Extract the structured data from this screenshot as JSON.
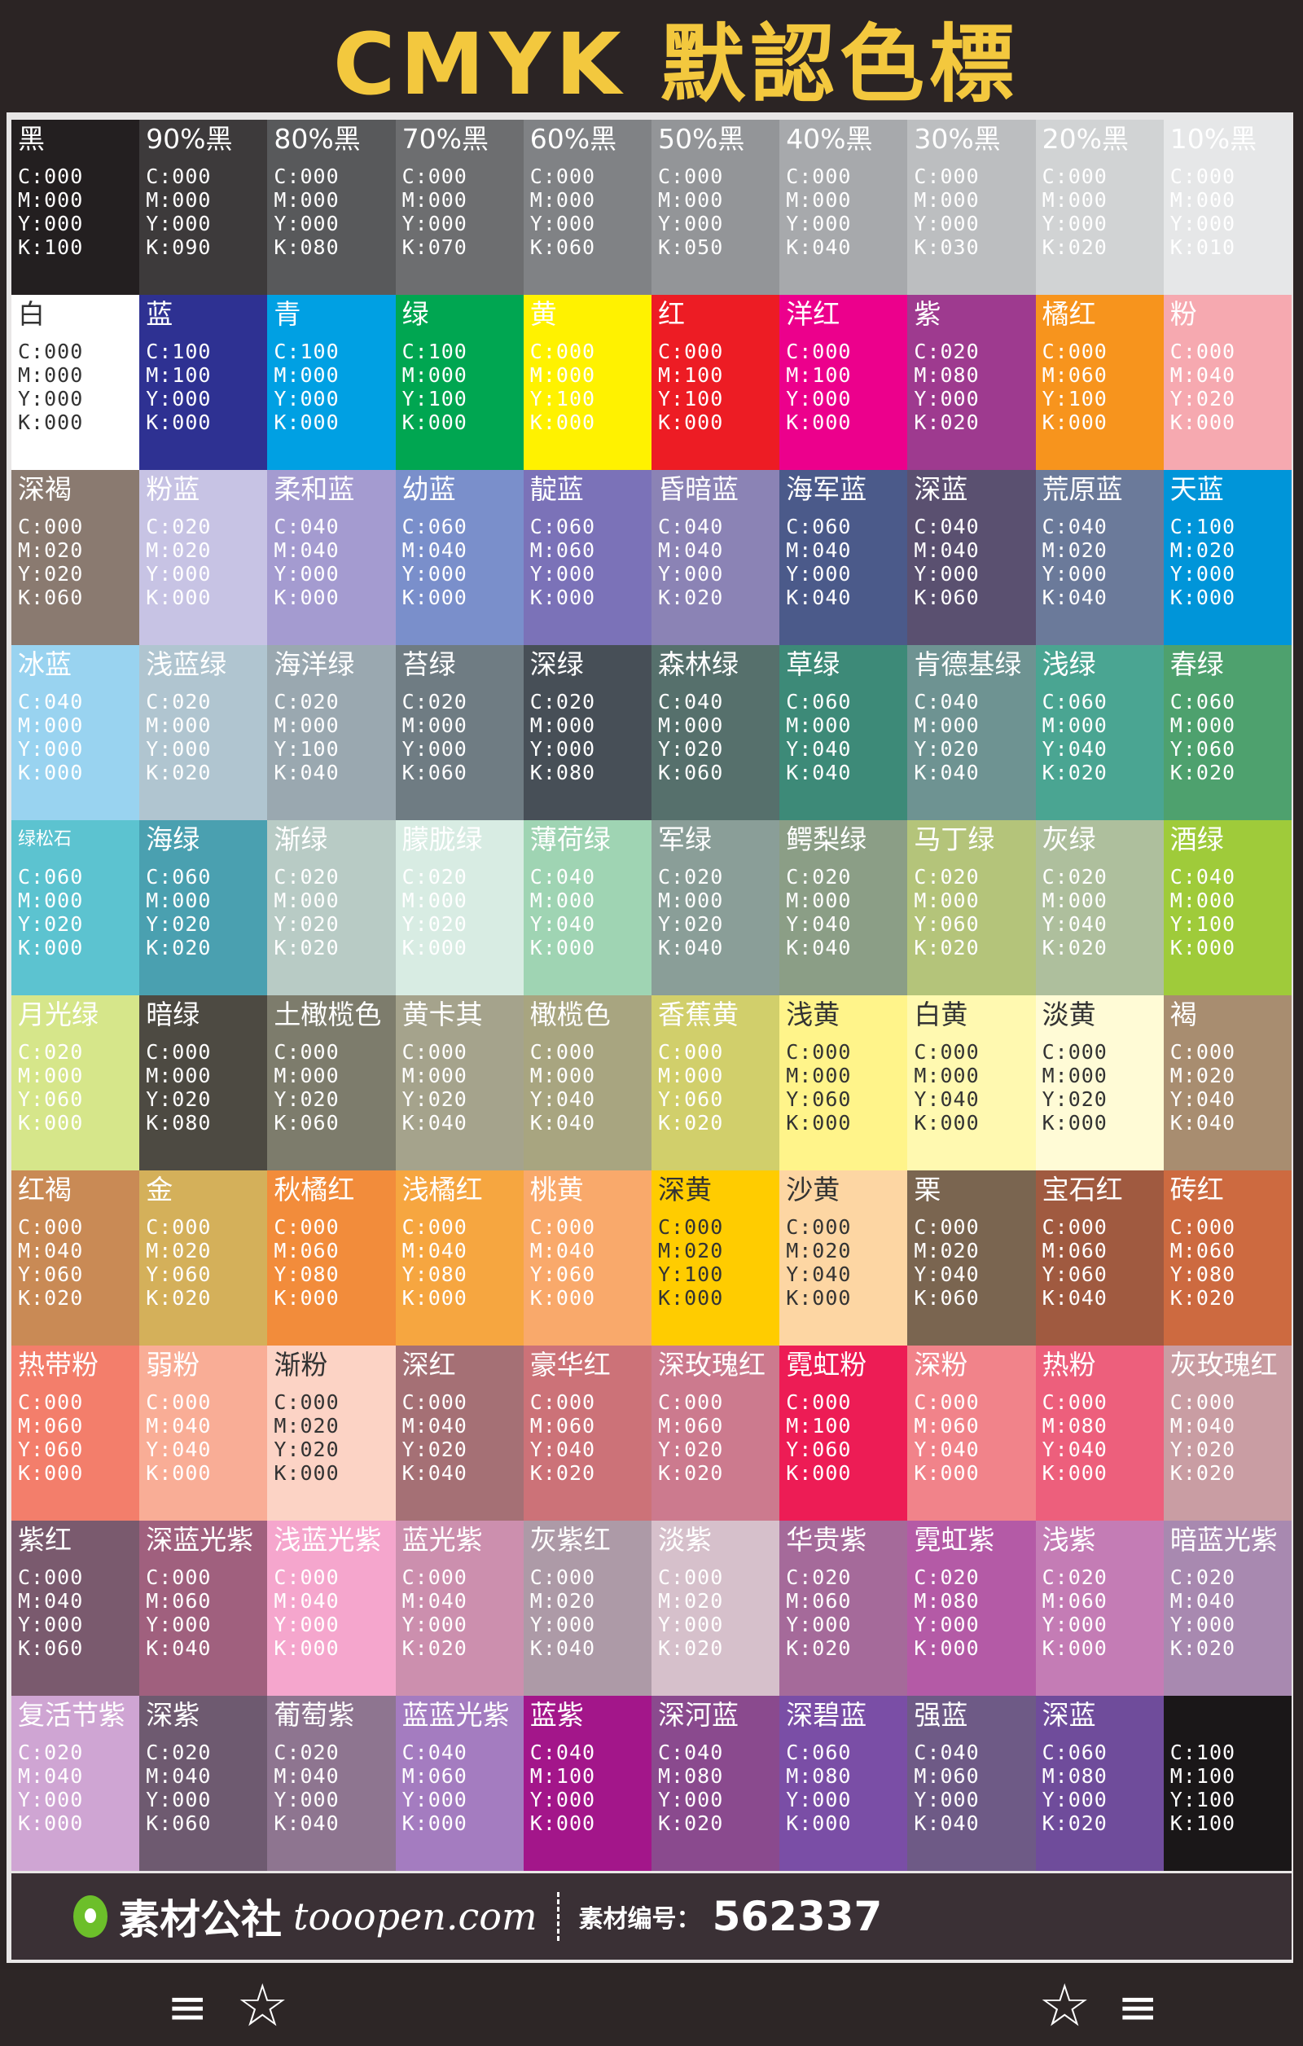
{
  "header": {
    "title": "CMYK 默認色標",
    "title_color": "#f3c83e"
  },
  "rows": [
    {
      "cells": [
        {
          "n": "黑",
          "bg": "#231f20",
          "v": [
            "C:000",
            "M:000",
            "Y:000",
            "K:100"
          ]
        },
        {
          "n": "90%黑",
          "bg": "#3d3a3b",
          "v": [
            "C:000",
            "M:000",
            "Y:000",
            "K:090"
          ]
        },
        {
          "n": "80%黑",
          "bg": "#58595b",
          "v": [
            "C:000",
            "M:000",
            "Y:000",
            "K:080"
          ]
        },
        {
          "n": "70%黑",
          "bg": "#6d6e70",
          "v": [
            "C:000",
            "M:000",
            "Y:000",
            "K:070"
          ]
        },
        {
          "n": "60%黑",
          "bg": "#808285",
          "v": [
            "C:000",
            "M:000",
            "Y:000",
            "K:060"
          ]
        },
        {
          "n": "50%黑",
          "bg": "#939598",
          "v": [
            "C:000",
            "M:000",
            "Y:000",
            "K:050"
          ]
        },
        {
          "n": "40%黑",
          "bg": "#a7a9ac",
          "v": [
            "C:000",
            "M:000",
            "Y:000",
            "K:040"
          ]
        },
        {
          "n": "30%黑",
          "bg": "#bcbec0",
          "v": [
            "C:000",
            "M:000",
            "Y:000",
            "K:030"
          ]
        },
        {
          "n": "20%黑",
          "bg": "#d1d3d4",
          "v": [
            "C:000",
            "M:000",
            "Y:000",
            "K:020"
          ]
        },
        {
          "n": "10%黑",
          "bg": "#e6e7e8",
          "v": [
            "C:000",
            "M:000",
            "Y:000",
            "K:010"
          ]
        }
      ]
    },
    {
      "cells": [
        {
          "n": "白",
          "bg": "#ffffff",
          "v": [
            "C:000",
            "M:000",
            "Y:000",
            "K:000"
          ]
        },
        {
          "n": "蓝",
          "bg": "#2e3192",
          "v": [
            "C:100",
            "M:100",
            "Y:000",
            "K:000"
          ]
        },
        {
          "n": "青",
          "bg": "#00a0e3",
          "v": [
            "C:100",
            "M:000",
            "Y:000",
            "K:000"
          ]
        },
        {
          "n": "绿",
          "bg": "#00a651",
          "v": [
            "C:100",
            "M:000",
            "Y:100",
            "K:000"
          ]
        },
        {
          "n": "黄",
          "bg": "#fff200",
          "v": [
            "C:000",
            "M:000",
            "Y:100",
            "K:000"
          ]
        },
        {
          "n": "红",
          "bg": "#ed1c24",
          "v": [
            "C:000",
            "M:100",
            "Y:100",
            "K:000"
          ]
        },
        {
          "n": "洋红",
          "bg": "#ec008c",
          "v": [
            "C:000",
            "M:100",
            "Y:000",
            "K:000"
          ]
        },
        {
          "n": "紫",
          "bg": "#9e3a8f",
          "v": [
            "C:020",
            "M:080",
            "Y:000",
            "K:020"
          ]
        },
        {
          "n": "橘红",
          "bg": "#f7941d",
          "v": [
            "C:000",
            "M:060",
            "Y:100",
            "K:000"
          ]
        },
        {
          "n": "粉",
          "bg": "#f6a9b0",
          "v": [
            "C:000",
            "M:040",
            "Y:020",
            "K:000"
          ]
        }
      ]
    },
    {
      "cells": [
        {
          "n": "深褐",
          "bg": "#8a7a70",
          "v": [
            "C:000",
            "M:020",
            "Y:020",
            "K:060"
          ]
        },
        {
          "n": "粉蓝",
          "bg": "#c7c3e4",
          "v": [
            "C:020",
            "M:020",
            "Y:000",
            "K:000"
          ]
        },
        {
          "n": "柔和蓝",
          "bg": "#a49bd0",
          "v": [
            "C:040",
            "M:040",
            "Y:000",
            "K:000"
          ]
        },
        {
          "n": "幼蓝",
          "bg": "#7a8fcb",
          "v": [
            "C:060",
            "M:040",
            "Y:000",
            "K:000"
          ]
        },
        {
          "n": "靛蓝",
          "bg": "#7b72b8",
          "v": [
            "C:060",
            "M:060",
            "Y:000",
            "K:000"
          ]
        },
        {
          "n": "昏暗蓝",
          "bg": "#8b83b5",
          "v": [
            "C:040",
            "M:040",
            "Y:000",
            "K:020"
          ]
        },
        {
          "n": "海军蓝",
          "bg": "#4b5a8a",
          "v": [
            "C:060",
            "M:040",
            "Y:000",
            "K:040"
          ]
        },
        {
          "n": "深蓝",
          "bg": "#5a5070",
          "v": [
            "C:040",
            "M:040",
            "Y:000",
            "K:060"
          ]
        },
        {
          "n": "荒原蓝",
          "bg": "#6b7a9a",
          "v": [
            "C:040",
            "M:020",
            "Y:000",
            "K:040"
          ]
        },
        {
          "n": "天蓝",
          "bg": "#0095d9",
          "v": [
            "C:100",
            "M:020",
            "Y:000",
            "K:000"
          ]
        }
      ]
    },
    {
      "cells": [
        {
          "n": "冰蓝",
          "bg": "#99d3f0",
          "v": [
            "C:040",
            "M:000",
            "Y:000",
            "K:000"
          ]
        },
        {
          "n": "浅蓝绿",
          "bg": "#b0c5d0",
          "v": [
            "C:020",
            "M:000",
            "Y:000",
            "K:020"
          ]
        },
        {
          "n": "海洋绿",
          "bg": "#9aa8b0",
          "v": [
            "C:020",
            "M:000",
            "Y:100",
            "K:040"
          ]
        },
        {
          "n": "苔绿",
          "bg": "#6f7c83",
          "v": [
            "C:020",
            "M:000",
            "Y:000",
            "K:060"
          ]
        },
        {
          "n": "深绿",
          "bg": "#474f57",
          "v": [
            "C:020",
            "M:000",
            "Y:000",
            "K:080"
          ]
        },
        {
          "n": "森林绿",
          "bg": "#56706c",
          "v": [
            "C:040",
            "M:000",
            "Y:020",
            "K:060"
          ]
        },
        {
          "n": "草绿",
          "bg": "#3d8a78",
          "v": [
            "C:060",
            "M:000",
            "Y:040",
            "K:040"
          ]
        },
        {
          "n": "肯德基绿",
          "bg": "#6e9392",
          "v": [
            "C:040",
            "M:000",
            "Y:020",
            "K:040"
          ]
        },
        {
          "n": "浅绿",
          "bg": "#4aa592",
          "v": [
            "C:060",
            "M:000",
            "Y:040",
            "K:020"
          ]
        },
        {
          "n": "春绿",
          "bg": "#4ea16e",
          "v": [
            "C:060",
            "M:000",
            "Y:060",
            "K:020"
          ]
        }
      ]
    },
    {
      "cells": [
        {
          "n": "绿松石",
          "bg": "#5cc3d0",
          "v": [
            "C:060",
            "M:000",
            "Y:020",
            "K:000"
          ]
        },
        {
          "n": "海绿",
          "bg": "#4aa0b0",
          "v": [
            "C:060",
            "M:000",
            "Y:020",
            "K:020"
          ]
        },
        {
          "n": "渐绿",
          "bg": "#b8cbc5",
          "v": [
            "C:020",
            "M:000",
            "Y:020",
            "K:020"
          ]
        },
        {
          "n": "朦胧绿",
          "bg": "#d8ece3",
          "v": [
            "C:020",
            "M:000",
            "Y:020",
            "K:000"
          ]
        },
        {
          "n": "薄荷绿",
          "bg": "#9fd4b3",
          "v": [
            "C:040",
            "M:000",
            "Y:040",
            "K:000"
          ]
        },
        {
          "n": "军绿",
          "bg": "#8a9e98",
          "v": [
            "C:020",
            "M:000",
            "Y:020",
            "K:040"
          ]
        },
        {
          "n": "鳄梨绿",
          "bg": "#8b9e86",
          "v": [
            "C:020",
            "M:000",
            "Y:040",
            "K:040"
          ]
        },
        {
          "n": "马丁绿",
          "bg": "#b4c47a",
          "v": [
            "C:020",
            "M:000",
            "Y:060",
            "K:020"
          ]
        },
        {
          "n": "灰绿",
          "bg": "#aebf9d",
          "v": [
            "C:020",
            "M:000",
            "Y:040",
            "K:020"
          ]
        },
        {
          "n": "酒绿",
          "bg": "#9fcb3a",
          "v": [
            "C:040",
            "M:000",
            "Y:100",
            "K:000"
          ]
        }
      ]
    },
    {
      "cells": [
        {
          "n": "月光绿",
          "bg": "#d6e68a",
          "v": [
            "C:020",
            "M:000",
            "Y:060",
            "K:000"
          ]
        },
        {
          "n": "暗绿",
          "bg": "#4d4a42",
          "v": [
            "C:000",
            "M:000",
            "Y:020",
            "K:080"
          ]
        },
        {
          "n": "土橄榄色",
          "bg": "#7d7c6c",
          "v": [
            "C:000",
            "M:000",
            "Y:020",
            "K:060"
          ]
        },
        {
          "n": "黄卡其",
          "bg": "#a5a38c",
          "v": [
            "C:000",
            "M:000",
            "Y:020",
            "K:040"
          ]
        },
        {
          "n": "橄榄色",
          "bg": "#a8a580",
          "v": [
            "C:000",
            "M:000",
            "Y:040",
            "K:040"
          ]
        },
        {
          "n": "香蕉黄",
          "bg": "#d1cf6b",
          "v": [
            "C:000",
            "M:000",
            "Y:060",
            "K:020"
          ]
        },
        {
          "n": "浅黄",
          "bg": "#fff48a",
          "v": [
            "C:000",
            "M:000",
            "Y:060",
            "K:000"
          ]
        },
        {
          "n": "白黄",
          "bg": "#fff9b0",
          "v": [
            "C:000",
            "M:000",
            "Y:040",
            "K:000"
          ]
        },
        {
          "n": "淡黄",
          "bg": "#fffbd6",
          "v": [
            "C:000",
            "M:000",
            "Y:020",
            "K:000"
          ]
        },
        {
          "n": "褐",
          "bg": "#a88d70",
          "v": [
            "C:000",
            "M:020",
            "Y:040",
            "K:040"
          ]
        }
      ]
    },
    {
      "cells": [
        {
          "n": "红褐",
          "bg": "#c98a55",
          "v": [
            "C:000",
            "M:040",
            "Y:060",
            "K:020"
          ]
        },
        {
          "n": "金",
          "bg": "#d4b05a",
          "v": [
            "C:000",
            "M:020",
            "Y:060",
            "K:020"
          ]
        },
        {
          "n": "秋橘红",
          "bg": "#f28c3b",
          "v": [
            "C:000",
            "M:060",
            "Y:080",
            "K:000"
          ]
        },
        {
          "n": "浅橘红",
          "bg": "#f6a640",
          "v": [
            "C:000",
            "M:040",
            "Y:080",
            "K:000"
          ]
        },
        {
          "n": "桃黄",
          "bg": "#f9a96b",
          "v": [
            "C:000",
            "M:040",
            "Y:060",
            "K:000"
          ]
        },
        {
          "n": "深黄",
          "bg": "#ffcc00",
          "v": [
            "C:000",
            "M:020",
            "Y:100",
            "K:000"
          ]
        },
        {
          "n": "沙黄",
          "bg": "#fdd6a3",
          "v": [
            "C:000",
            "M:020",
            "Y:040",
            "K:000"
          ]
        },
        {
          "n": "栗",
          "bg": "#7a6550",
          "v": [
            "C:000",
            "M:020",
            "Y:040",
            "K:060"
          ]
        },
        {
          "n": "宝石红",
          "bg": "#a05a40",
          "v": [
            "C:000",
            "M:060",
            "Y:060",
            "K:040"
          ]
        },
        {
          "n": "砖红",
          "bg": "#cd6a40",
          "v": [
            "C:000",
            "M:060",
            "Y:080",
            "K:020"
          ]
        }
      ]
    },
    {
      "cells": [
        {
          "n": "热带粉",
          "bg": "#f37e6b",
          "v": [
            "C:000",
            "M:060",
            "Y:060",
            "K:000"
          ]
        },
        {
          "n": "弱粉",
          "bg": "#f9ad96",
          "v": [
            "C:000",
            "M:040",
            "Y:040",
            "K:000"
          ]
        },
        {
          "n": "渐粉",
          "bg": "#fcd3c5",
          "v": [
            "C:000",
            "M:020",
            "Y:020",
            "K:000"
          ]
        },
        {
          "n": "深红",
          "bg": "#a57075",
          "v": [
            "C:000",
            "M:040",
            "Y:020",
            "K:040"
          ]
        },
        {
          "n": "豪华红",
          "bg": "#cc7278",
          "v": [
            "C:000",
            "M:060",
            "Y:040",
            "K:020"
          ]
        },
        {
          "n": "深玫瑰红",
          "bg": "#cc7a8e",
          "v": [
            "C:000",
            "M:060",
            "Y:020",
            "K:020"
          ]
        },
        {
          "n": "霓虹粉",
          "bg": "#ed1c55",
          "v": [
            "C:000",
            "M:100",
            "Y:060",
            "K:000"
          ]
        },
        {
          "n": "深粉",
          "bg": "#f1838a",
          "v": [
            "C:000",
            "M:060",
            "Y:040",
            "K:000"
          ]
        },
        {
          "n": "热粉",
          "bg": "#ed5f7c",
          "v": [
            "C:000",
            "M:080",
            "Y:040",
            "K:000"
          ]
        },
        {
          "n": "灰玫瑰红",
          "bg": "#c99da3",
          "v": [
            "C:000",
            "M:040",
            "Y:020",
            "K:020"
          ]
        }
      ]
    },
    {
      "cells": [
        {
          "n": "紫红",
          "bg": "#7a5a6e",
          "v": [
            "C:000",
            "M:040",
            "Y:000",
            "K:060"
          ]
        },
        {
          "n": "深蓝光紫",
          "bg": "#a0607e",
          "v": [
            "C:000",
            "M:060",
            "Y:000",
            "K:040"
          ]
        },
        {
          "n": "浅蓝光紫",
          "bg": "#f5a6cd",
          "v": [
            "C:000",
            "M:040",
            "Y:000",
            "K:000"
          ]
        },
        {
          "n": "蓝光紫",
          "bg": "#cc8fae",
          "v": [
            "C:000",
            "M:040",
            "Y:000",
            "K:020"
          ]
        },
        {
          "n": "灰紫红",
          "bg": "#ad9aa7",
          "v": [
            "C:000",
            "M:020",
            "Y:000",
            "K:040"
          ]
        },
        {
          "n": "淡紫",
          "bg": "#d6c0cb",
          "v": [
            "C:000",
            "M:020",
            "Y:000",
            "K:020"
          ]
        },
        {
          "n": "华贵紫",
          "bg": "#a56a9a",
          "v": [
            "C:020",
            "M:060",
            "Y:000",
            "K:020"
          ]
        },
        {
          "n": "霓虹紫",
          "bg": "#b45aa6",
          "v": [
            "C:020",
            "M:080",
            "Y:000",
            "K:000"
          ]
        },
        {
          "n": "浅紫",
          "bg": "#c47cb5",
          "v": [
            "C:020",
            "M:060",
            "Y:000",
            "K:000"
          ]
        },
        {
          "n": "暗蓝光紫",
          "bg": "#a889b0",
          "v": [
            "C:020",
            "M:040",
            "Y:000",
            "K:020"
          ]
        }
      ]
    },
    {
      "cells": [
        {
          "n": "复活节紫",
          "bg": "#cfa5d3",
          "v": [
            "C:020",
            "M:040",
            "Y:000",
            "K:000"
          ]
        },
        {
          "n": "深紫",
          "bg": "#6e5a70",
          "v": [
            "C:020",
            "M:040",
            "Y:000",
            "K:060"
          ]
        },
        {
          "n": "葡萄紫",
          "bg": "#8e7590",
          "v": [
            "C:020",
            "M:040",
            "Y:000",
            "K:040"
          ]
        },
        {
          "n": "蓝蓝光紫",
          "bg": "#a47cc0",
          "v": [
            "C:040",
            "M:060",
            "Y:000",
            "K:000"
          ]
        },
        {
          "n": "蓝紫",
          "bg": "#a3168a",
          "v": [
            "C:040",
            "M:100",
            "Y:000",
            "K:000"
          ]
        },
        {
          "n": "深河蓝",
          "bg": "#8a4a8e",
          "v": [
            "C:040",
            "M:080",
            "Y:000",
            "K:020"
          ]
        },
        {
          "n": "深碧蓝",
          "bg": "#7a4ea6",
          "v": [
            "C:060",
            "M:080",
            "Y:000",
            "K:000"
          ]
        },
        {
          "n": "强蓝",
          "bg": "#6e5a86",
          "v": [
            "C:040",
            "M:060",
            "Y:000",
            "K:040"
          ]
        },
        {
          "n": "深蓝",
          "bg": "#6f4c9b",
          "v": [
            "C:060",
            "M:080",
            "Y:000",
            "K:020"
          ]
        },
        {
          "n": "",
          "bg": "#1a1718",
          "v": [
            "C:100",
            "M:100",
            "Y:100",
            "K:100"
          ]
        }
      ]
    }
  ],
  "watermark": {
    "brand": "素材公社",
    "url": "tooopen.com",
    "id_label": "素材编号：",
    "id": "562337"
  },
  "footer": {
    "left_icons": [
      "menu-icon",
      "star-icon"
    ],
    "right_icons": [
      "star-icon",
      "menu-icon"
    ],
    "menu_glyph": "≡",
    "star_glyph": "☆"
  }
}
